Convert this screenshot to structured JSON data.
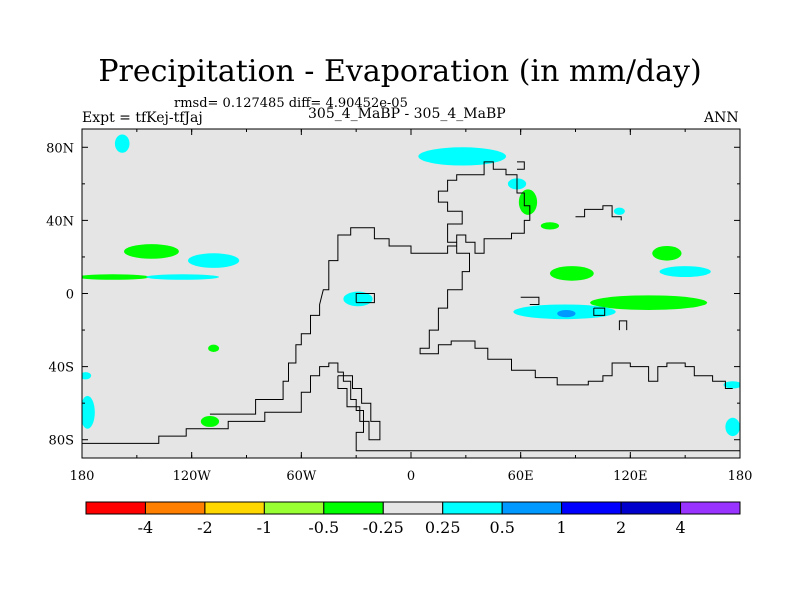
{
  "header": {
    "title": "Precipitation - Evaporation (in mm/day)",
    "stats": "rmsd= 0.127485  diff= 4.90452e-05",
    "case": "305_4_MaBP - 305_4_MaBP",
    "expt": "Expt = tfKej-tfJaj",
    "season": "ANN"
  },
  "chart_data": {
    "type": "heatmap",
    "projection": "cylindrical-equidistant",
    "title": "Precipitation - Evaporation (in mm/day)",
    "xlim": [
      -180,
      180
    ],
    "ylim": [
      -90,
      90
    ],
    "x_ticks": [
      {
        "value": -180,
        "label": "180"
      },
      {
        "value": -120,
        "label": "120W"
      },
      {
        "value": -60,
        "label": "60W"
      },
      {
        "value": 0,
        "label": "0"
      },
      {
        "value": 60,
        "label": "60E"
      },
      {
        "value": 120,
        "label": "120E"
      },
      {
        "value": 180,
        "label": "180"
      }
    ],
    "y_ticks": [
      {
        "value": 80,
        "label": "80N"
      },
      {
        "value": 40,
        "label": "40N"
      },
      {
        "value": 0,
        "label": "0"
      },
      {
        "value": -40,
        "label": "40S"
      },
      {
        "value": -80,
        "label": "80S"
      }
    ],
    "background_color": "#e5e5e5",
    "colorbar": {
      "colors": [
        "#ff0000",
        "#ff8000",
        "#ffd700",
        "#99ff33",
        "#00ff00",
        "#e5e5e5",
        "#00ffff",
        "#0099ff",
        "#0000ff",
        "#0000cc",
        "#9933ff"
      ],
      "labels": [
        "-4",
        "-2",
        "-1",
        "-0.5",
        "-0.25",
        "0.25",
        "0.5",
        "1",
        "2",
        "4"
      ]
    },
    "anomalies": [
      {
        "lon": -158,
        "lat": 82,
        "rlon": 4,
        "rlat": 5,
        "level": "0.25 to 0.5"
      },
      {
        "lon": 28,
        "lat": 75,
        "rlon": 24,
        "rlat": 5,
        "level": "0.25 to 0.5"
      },
      {
        "lon": 58,
        "lat": 60,
        "rlon": 5,
        "rlat": 3,
        "level": "0.25 to 0.5"
      },
      {
        "lon": 64,
        "lat": 50,
        "rlon": 5,
        "rlat": 7,
        "level": "-0.5 to -0.25"
      },
      {
        "lon": 76,
        "lat": 37,
        "rlon": 5,
        "rlat": 2,
        "level": "-0.5 to -0.25"
      },
      {
        "lon": 114,
        "lat": 45,
        "rlon": 3,
        "rlat": 2,
        "level": "0.25 to 0.5"
      },
      {
        "lon": -142,
        "lat": 23,
        "rlon": 15,
        "rlat": 4,
        "level": "-0.5 to -0.25"
      },
      {
        "lon": -108,
        "lat": 18,
        "rlon": 14,
        "rlat": 4,
        "level": "0.25 to 0.5"
      },
      {
        "lon": -163,
        "lat": 9,
        "rlon": 20,
        "rlat": 1.5,
        "level": "-0.5 to -0.25"
      },
      {
        "lon": -125,
        "lat": 9,
        "rlon": 20,
        "rlat": 1.5,
        "level": "0.25 to 0.5"
      },
      {
        "lon": -29,
        "lat": -3,
        "rlon": 8,
        "rlat": 4,
        "level": "0.25 to 0.5"
      },
      {
        "lon": 88,
        "lat": 11,
        "rlon": 12,
        "rlat": 4,
        "level": "-0.5 to -0.25"
      },
      {
        "lon": 140,
        "lat": 22,
        "rlon": 8,
        "rlat": 4,
        "level": "-0.5 to -0.25"
      },
      {
        "lon": 150,
        "lat": 12,
        "rlon": 14,
        "rlat": 3,
        "level": "0.25 to 0.5"
      },
      {
        "lon": 130,
        "lat": -5,
        "rlon": 32,
        "rlat": 4,
        "level": "-0.5 to -0.25"
      },
      {
        "lon": 84,
        "lat": -10,
        "rlon": 28,
        "rlat": 4,
        "level": "0.25 to 0.5"
      },
      {
        "lon": 85,
        "lat": -11,
        "rlon": 5,
        "rlat": 2,
        "level": "0.5 to 1"
      },
      {
        "lon": -110,
        "lat": -70,
        "rlon": 5,
        "rlat": 3,
        "level": "-0.5 to -0.25"
      },
      {
        "lon": -177,
        "lat": -65,
        "rlon": 4,
        "rlat": 9,
        "level": "0.25 to 0.5"
      },
      {
        "lon": 176,
        "lat": -50,
        "rlon": 5,
        "rlat": 2,
        "level": "0.25 to 0.5"
      },
      {
        "lon": 176,
        "lat": -73,
        "rlon": 4,
        "rlat": 5,
        "level": "0.25 to 0.5"
      },
      {
        "lon": -178,
        "lat": -45,
        "rlon": 3,
        "rlat": 2,
        "level": "0.25 to 0.5"
      },
      {
        "lon": -108,
        "lat": -30,
        "rlon": 3,
        "rlat": 2,
        "level": "-0.5 to -0.25"
      }
    ],
    "coastlines": [
      [
        [
          -180,
          -82
        ],
        [
          -138,
          -82
        ],
        [
          -138,
          -78
        ],
        [
          -123,
          -78
        ],
        [
          -123,
          -74
        ],
        [
          -100,
          -74
        ],
        [
          -100,
          -70
        ],
        [
          -80,
          -70
        ],
        [
          -80,
          -65
        ],
        [
          -60,
          -65
        ],
        [
          -60,
          -54
        ],
        [
          -55,
          -54
        ],
        [
          -55,
          -45
        ],
        [
          -50,
          -45
        ],
        [
          -50,
          -40
        ],
        [
          -45,
          -40
        ],
        [
          -45,
          -38
        ],
        [
          -40,
          -38
        ],
        [
          -40,
          -43
        ],
        [
          -37,
          -43
        ],
        [
          -37,
          -48
        ],
        [
          -33,
          -48
        ],
        [
          -33,
          -58
        ],
        [
          -30,
          -58
        ],
        [
          -30,
          -64
        ],
        [
          -26,
          -64
        ],
        [
          -26,
          -76
        ],
        [
          -30,
          -76
        ],
        [
          -30,
          -86
        ],
        [
          180,
          -86
        ]
      ],
      [
        [
          -110,
          -66
        ],
        [
          -85,
          -66
        ],
        [
          -85,
          -58
        ],
        [
          -70,
          -58
        ],
        [
          -70,
          -48
        ],
        [
          -67,
          -48
        ],
        [
          -67,
          -38
        ],
        [
          -63,
          -38
        ],
        [
          -63,
          -28
        ],
        [
          -60,
          -28
        ],
        [
          -60,
          -22
        ],
        [
          -55,
          -22
        ],
        [
          -55,
          -12
        ],
        [
          -50,
          -12
        ],
        [
          -50,
          -6
        ],
        [
          -48,
          2
        ],
        [
          -45,
          2
        ],
        [
          -45,
          18
        ],
        [
          -40,
          18
        ],
        [
          -40,
          32
        ],
        [
          -33,
          32
        ],
        [
          -33,
          36
        ],
        [
          -20,
          36
        ],
        [
          -20,
          30
        ],
        [
          -12,
          30
        ],
        [
          -12,
          26
        ],
        [
          0,
          26
        ],
        [
          0,
          22
        ],
        [
          20,
          22
        ],
        [
          20,
          26
        ],
        [
          25,
          26
        ],
        [
          25,
          32
        ],
        [
          30,
          32
        ],
        [
          30,
          28
        ],
        [
          35,
          28
        ],
        [
          35,
          22
        ],
        [
          40,
          22
        ],
        [
          40,
          30
        ],
        [
          55,
          30
        ],
        [
          55,
          33
        ],
        [
          62,
          33
        ],
        [
          62,
          40
        ],
        [
          65,
          40
        ],
        [
          65,
          48
        ],
        [
          62,
          48
        ],
        [
          62,
          55
        ],
        [
          58,
          55
        ],
        [
          58,
          65
        ],
        [
          52,
          65
        ],
        [
          52,
          68
        ],
        [
          45,
          68
        ],
        [
          45,
          72
        ],
        [
          40,
          72
        ],
        [
          40,
          65
        ],
        [
          25,
          65
        ],
        [
          25,
          62
        ],
        [
          20,
          62
        ],
        [
          20,
          56
        ],
        [
          15,
          56
        ],
        [
          15,
          50
        ],
        [
          20,
          50
        ],
        [
          20,
          45
        ],
        [
          28,
          45
        ],
        [
          28,
          38
        ],
        [
          20,
          38
        ],
        [
          20,
          28
        ],
        [
          25,
          28
        ],
        [
          25,
          22
        ],
        [
          32,
          22
        ],
        [
          32,
          12
        ],
        [
          28,
          12
        ],
        [
          28,
          2
        ],
        [
          20,
          2
        ],
        [
          20,
          -8
        ],
        [
          15,
          -8
        ],
        [
          15,
          -20
        ],
        [
          10,
          -20
        ],
        [
          10,
          -30
        ],
        [
          5,
          -30
        ],
        [
          5,
          -33
        ],
        [
          15,
          -33
        ],
        [
          15,
          -28
        ],
        [
          22,
          -28
        ],
        [
          22,
          -26
        ],
        [
          35,
          -26
        ],
        [
          35,
          -30
        ],
        [
          42,
          -30
        ],
        [
          42,
          -36
        ],
        [
          55,
          -36
        ],
        [
          55,
          -42
        ],
        [
          68,
          -42
        ],
        [
          68,
          -46
        ],
        [
          80,
          -46
        ],
        [
          80,
          -50
        ],
        [
          97,
          -50
        ],
        [
          97,
          -48
        ],
        [
          105,
          -48
        ],
        [
          105,
          -45
        ],
        [
          110,
          -45
        ],
        [
          110,
          -38
        ],
        [
          120,
          -38
        ],
        [
          120,
          -40
        ],
        [
          130,
          -40
        ],
        [
          130,
          -48
        ],
        [
          135,
          -48
        ],
        [
          135,
          -40
        ],
        [
          140,
          -40
        ],
        [
          140,
          -38
        ],
        [
          150,
          -38
        ],
        [
          150,
          -40
        ],
        [
          155,
          -40
        ],
        [
          155,
          -45
        ],
        [
          165,
          -45
        ],
        [
          165,
          -48
        ],
        [
          172,
          -48
        ],
        [
          172,
          -52
        ],
        [
          176,
          -52
        ]
      ],
      [
        [
          -30,
          -5
        ],
        [
          -20,
          -5
        ],
        [
          -20,
          0
        ],
        [
          -30,
          0
        ],
        [
          -30,
          -5
        ]
      ],
      [
        [
          -40,
          -45
        ],
        [
          -32,
          -45
        ],
        [
          -32,
          -52
        ],
        [
          -27,
          -52
        ],
        [
          -27,
          -60
        ],
        [
          -22,
          -60
        ],
        [
          -22,
          -70
        ],
        [
          -17,
          -70
        ],
        [
          -17,
          -80
        ],
        [
          -23,
          -80
        ],
        [
          -23,
          -70
        ],
        [
          -28,
          -70
        ],
        [
          -28,
          -62
        ],
        [
          -35,
          -62
        ],
        [
          -35,
          -52
        ],
        [
          -40,
          -52
        ],
        [
          -40,
          -45
        ]
      ],
      [
        [
          60,
          -2
        ],
        [
          70,
          -2
        ],
        [
          70,
          -6
        ],
        [
          65,
          -6
        ]
      ],
      [
        [
          58,
          72
        ],
        [
          62,
          72
        ],
        [
          62,
          68
        ],
        [
          58,
          68
        ]
      ],
      [
        [
          90,
          42
        ],
        [
          95,
          42
        ],
        [
          95,
          46
        ],
        [
          105,
          46
        ],
        [
          105,
          48
        ],
        [
          110,
          48
        ],
        [
          110,
          42
        ],
        [
          115,
          42
        ],
        [
          115,
          40
        ]
      ],
      [
        [
          118,
          -20
        ],
        [
          118,
          -15
        ],
        [
          114,
          -15
        ],
        [
          114,
          -20
        ]
      ],
      [
        [
          100,
          -8
        ],
        [
          106,
          -8
        ],
        [
          106,
          -12
        ],
        [
          100,
          -12
        ],
        [
          100,
          -8
        ]
      ]
    ]
  }
}
